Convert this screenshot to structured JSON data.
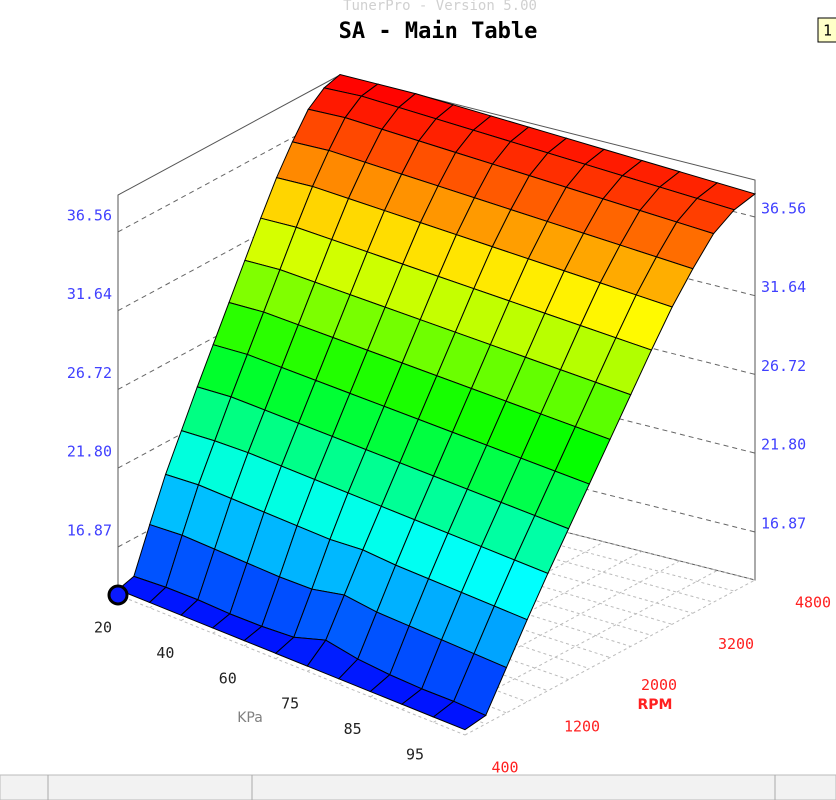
{
  "app_title": "TunerPro - Version 5.00",
  "badge": "1",
  "chart_data": {
    "type": "surface",
    "title": "SA - Main Table",
    "x_label": "KPa",
    "y_label": "RPM",
    "xticks": [
      20,
      40,
      60,
      75,
      85,
      95
    ],
    "yticks": [
      400,
      1200,
      2000,
      3200,
      4800
    ],
    "zlim": [
      13.87,
      38.87
    ],
    "zticks": [
      16.87,
      {
        "value": 21.8,
        "label": "21.80"
      },
      26.72,
      31.64,
      36.56
    ],
    "z": [
      [
        14.2,
        14.5,
        17.2,
        19.8,
        22.0,
        24.2,
        26.3,
        28.4,
        30.5,
        32.6,
        34.6,
        36.3,
        37.8,
        38.6,
        38.9
      ],
      [
        14.2,
        14.6,
        17.3,
        19.9,
        22.1,
        24.3,
        26.4,
        28.5,
        30.6,
        32.7,
        34.7,
        36.4,
        37.9,
        38.7,
        38.9
      ],
      [
        14.2,
        14.6,
        17.2,
        19.8,
        22.1,
        24.2,
        26.3,
        28.4,
        30.5,
        32.6,
        34.6,
        36.3,
        37.8,
        38.6,
        38.9
      ],
      [
        14.2,
        14.5,
        17.1,
        19.7,
        22.0,
        24.1,
        26.2,
        28.3,
        30.4,
        32.5,
        34.5,
        36.2,
        37.7,
        38.5,
        38.8
      ],
      [
        14.2,
        14.5,
        17.0,
        19.6,
        21.9,
        24.0,
        26.1,
        28.2,
        30.3,
        32.4,
        34.4,
        36.1,
        37.6,
        38.4,
        38.7
      ],
      [
        14.2,
        14.6,
        17.0,
        19.5,
        21.8,
        23.9,
        26.0,
        28.1,
        30.2,
        32.3,
        34.3,
        36.0,
        37.5,
        38.3,
        38.6
      ],
      [
        14.2,
        15.2,
        17.4,
        19.6,
        21.7,
        23.8,
        25.9,
        28.0,
        30.1,
        32.2,
        34.2,
        35.9,
        37.4,
        38.2,
        38.5
      ],
      [
        14.2,
        14.8,
        17.1,
        19.4,
        21.6,
        23.7,
        25.8,
        27.9,
        30.0,
        32.1,
        34.1,
        35.8,
        37.3,
        38.1,
        38.4
      ],
      [
        14.2,
        14.6,
        17.0,
        19.3,
        21.5,
        23.6,
        25.7,
        27.8,
        29.9,
        32.0,
        34.0,
        35.7,
        37.2,
        38.0,
        38.3
      ],
      [
        14.2,
        14.5,
        16.9,
        19.2,
        21.4,
        23.5,
        25.6,
        27.7,
        29.8,
        31.9,
        33.9,
        35.6,
        37.1,
        37.9,
        38.2
      ],
      [
        14.2,
        14.5,
        16.8,
        19.1,
        21.3,
        23.4,
        25.5,
        27.6,
        29.7,
        31.8,
        33.8,
        35.5,
        37.0,
        37.8,
        38.1
      ],
      [
        14.2,
        14.4,
        16.7,
        19.0,
        21.2,
        23.3,
        25.4,
        27.5,
        29.6,
        31.7,
        33.7,
        35.4,
        36.9,
        37.7,
        38.0
      ]
    ]
  }
}
